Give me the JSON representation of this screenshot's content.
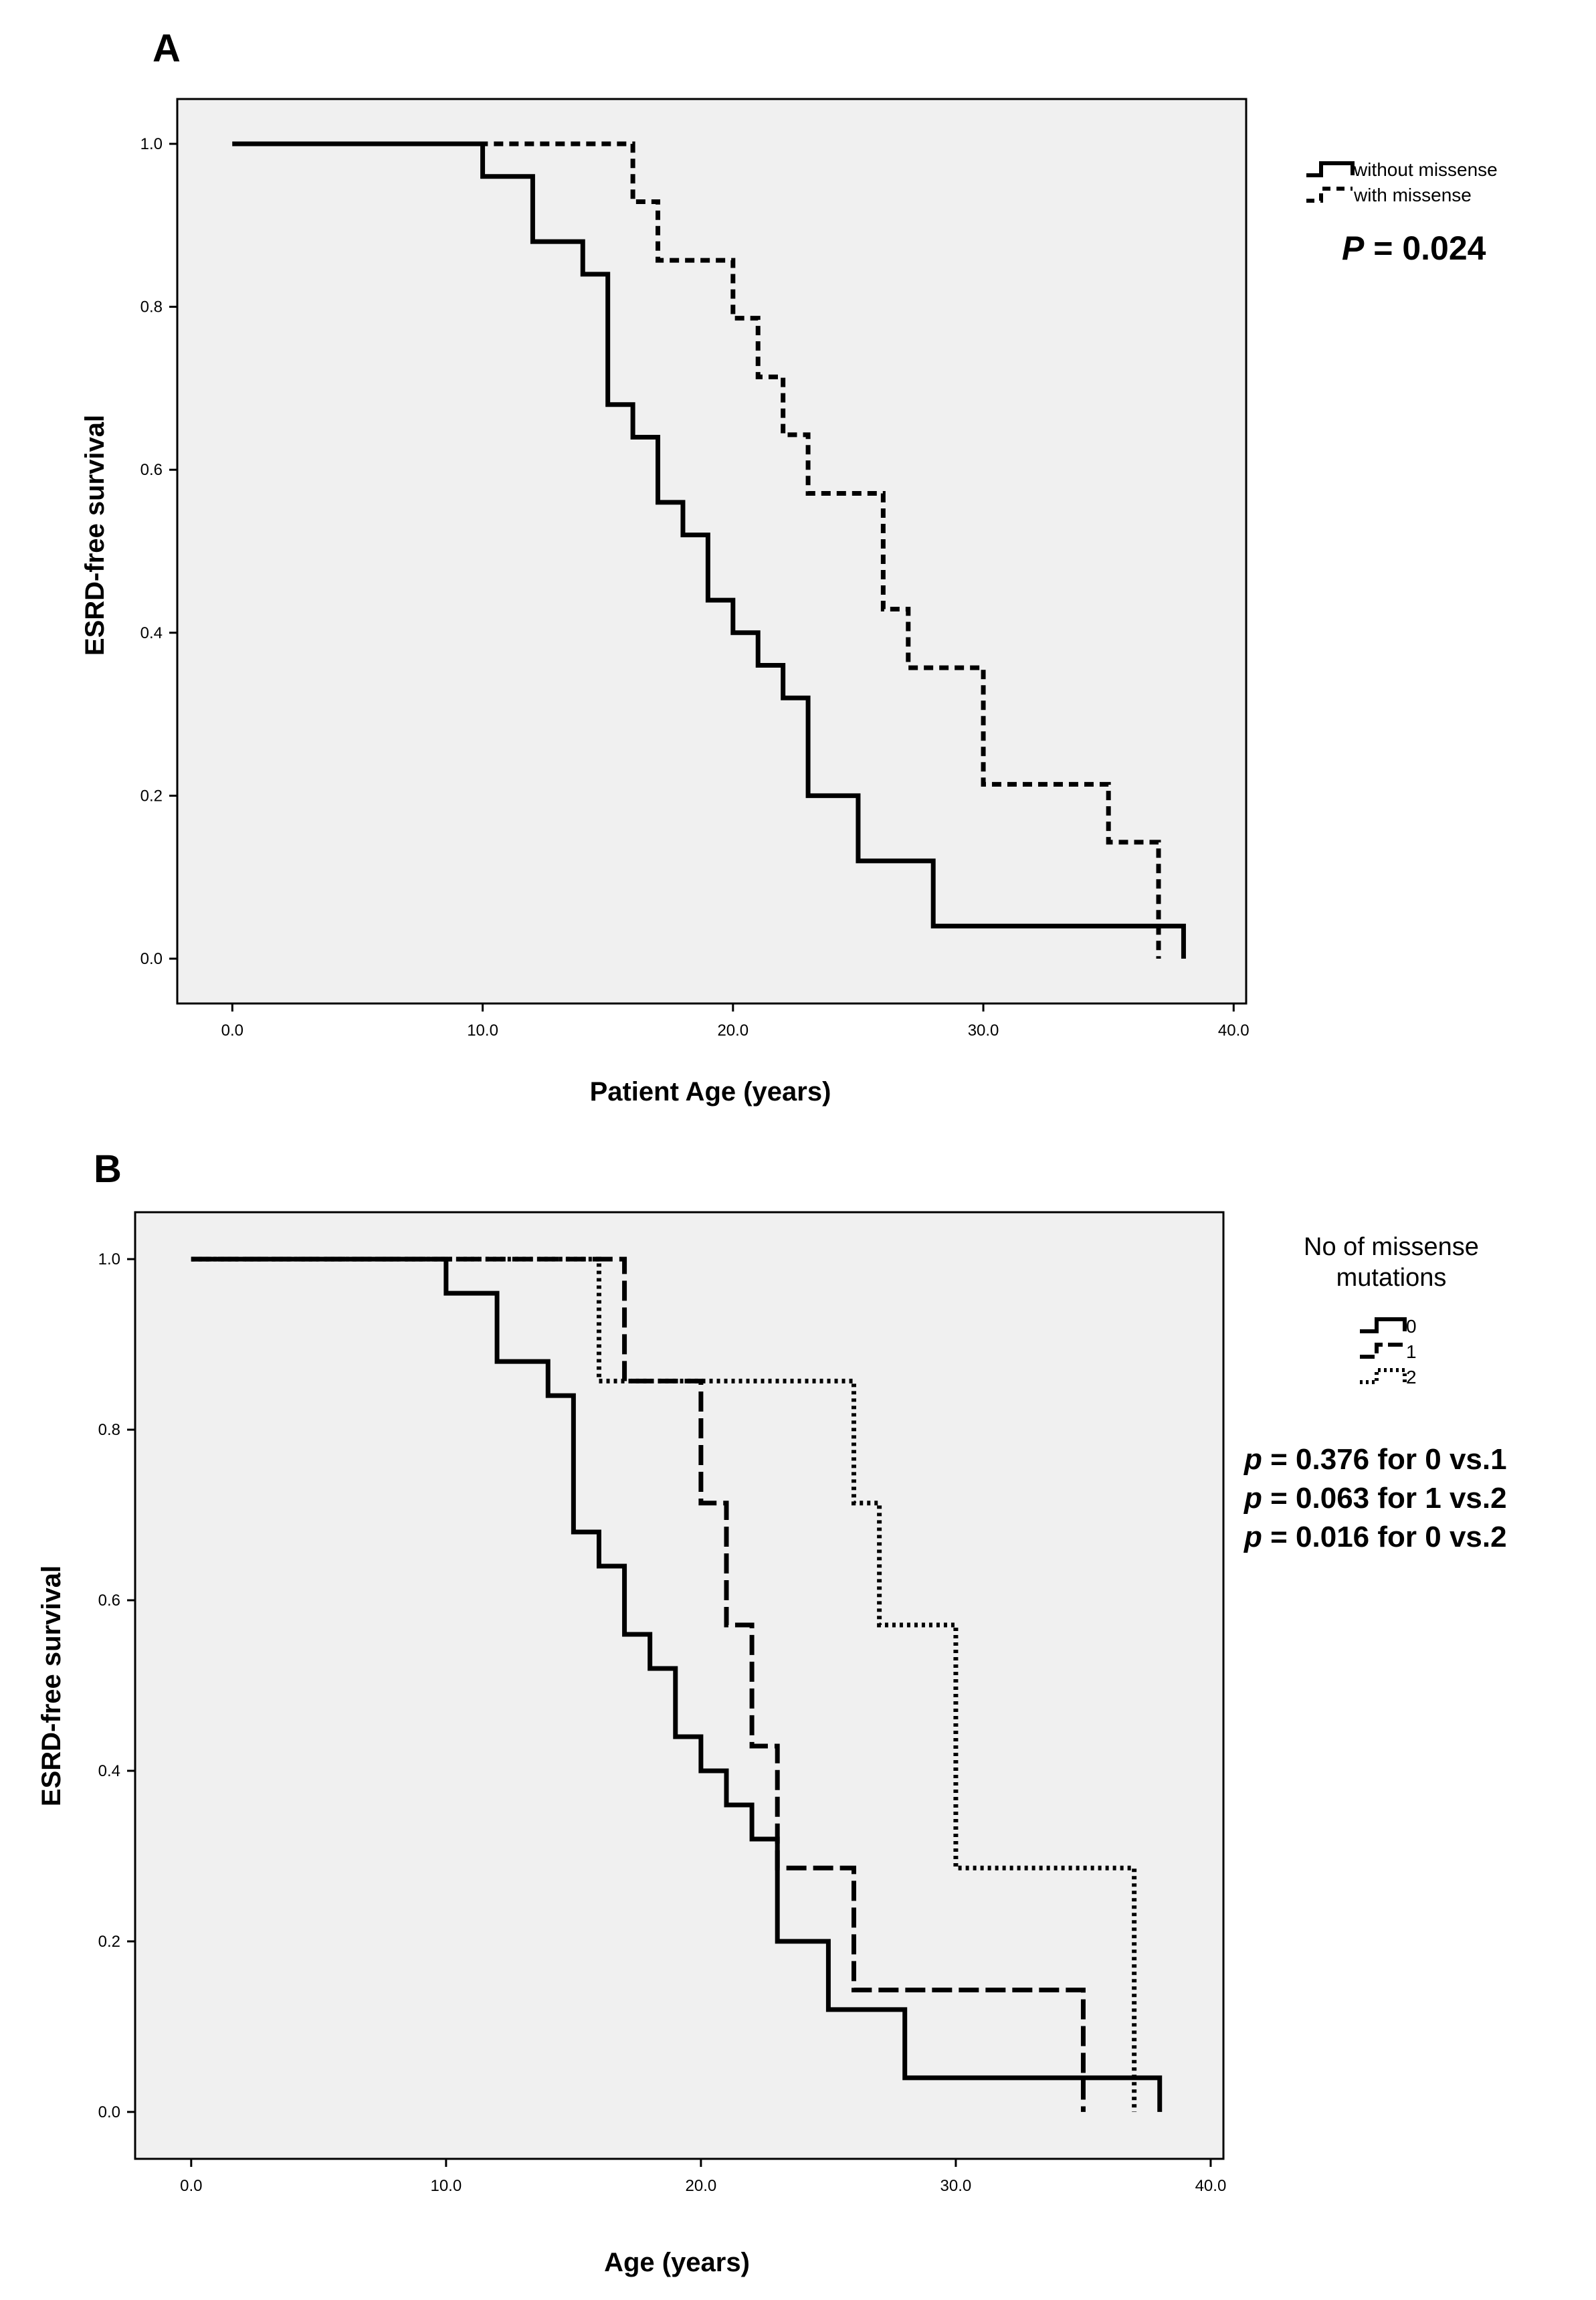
{
  "chart_data": [
    {
      "type": "line",
      "panel_label": "A",
      "xlabel": "Patient Age (years)",
      "ylabel": "ESRD-free survival",
      "xlim": [
        -2.2,
        40.5
      ],
      "ylim": [
        -0.055,
        1.055
      ],
      "xticks": [
        "0.0",
        "10.0",
        "20.0",
        "30.0",
        "40.0"
      ],
      "yticks": [
        "0.0",
        "0.2",
        "0.4",
        "0.6",
        "0.8",
        "1.0"
      ],
      "legend_title": "",
      "legend_placement": "right",
      "annotations": [
        {
          "prefix": "P",
          "text": " = 0.024"
        }
      ],
      "series": [
        {
          "name": "without missense",
          "style": "solid",
          "steps": [
            [
              0,
              1
            ],
            [
              10,
              0.96
            ],
            [
              12,
              0.88
            ],
            [
              14,
              0.84
            ],
            [
              15,
              0.68
            ],
            [
              16,
              0.64
            ],
            [
              17,
              0.56
            ],
            [
              18,
              0.52
            ],
            [
              19,
              0.44
            ],
            [
              20,
              0.4
            ],
            [
              21,
              0.36
            ],
            [
              22,
              0.32
            ],
            [
              23,
              0.2
            ],
            [
              25,
              0.12
            ],
            [
              28,
              0.04
            ],
            [
              38,
              0
            ]
          ],
          "end": 38
        },
        {
          "name": "with missense",
          "style": "dashed",
          "steps": [
            [
              0,
              1
            ],
            [
              16,
              0.929
            ],
            [
              17,
              0.857
            ],
            [
              20,
              0.786
            ],
            [
              21,
              0.714
            ],
            [
              22,
              0.643
            ],
            [
              23,
              0.571
            ],
            [
              26,
              0.429
            ],
            [
              27,
              0.357
            ],
            [
              30,
              0.214
            ],
            [
              35,
              0.143
            ],
            [
              37,
              0
            ]
          ],
          "end": 37
        }
      ]
    },
    {
      "type": "line",
      "panel_label": "B",
      "xlabel": "Age (years)",
      "ylabel": "ESRD-free survival",
      "xlim": [
        -2.2,
        40.5
      ],
      "ylim": [
        -0.055,
        1.055
      ],
      "xticks": [
        "0.0",
        "10.0",
        "20.0",
        "30.0",
        "40.0"
      ],
      "yticks": [
        "0.0",
        "0.2",
        "0.4",
        "0.6",
        "0.8",
        "1.0"
      ],
      "legend_title": "No of missense mutations",
      "legend_title_lines": [
        "No of missense",
        "mutations"
      ],
      "legend_placement": "right",
      "annotations": [
        {
          "prefix": "p",
          "text": " = 0.376 for 0 vs.1"
        },
        {
          "prefix": "p",
          "text": " = 0.063 for 1 vs.2"
        },
        {
          "prefix": "p",
          "text": " = 0.016 for 0 vs.2"
        }
      ],
      "series": [
        {
          "name": "0",
          "style": "solid",
          "steps": [
            [
              0,
              1
            ],
            [
              10,
              0.96
            ],
            [
              12,
              0.88
            ],
            [
              14,
              0.84
            ],
            [
              15,
              0.68
            ],
            [
              16,
              0.64
            ],
            [
              17,
              0.56
            ],
            [
              18,
              0.52
            ],
            [
              19,
              0.44
            ],
            [
              20,
              0.4
            ],
            [
              21,
              0.36
            ],
            [
              22,
              0.32
            ],
            [
              23,
              0.2
            ],
            [
              25,
              0.12
            ],
            [
              28,
              0.04
            ],
            [
              38,
              0
            ]
          ],
          "end": 38
        },
        {
          "name": "1",
          "style": "longdash",
          "steps": [
            [
              0,
              1
            ],
            [
              17,
              0.857
            ],
            [
              20,
              0.714
            ],
            [
              21,
              0.571
            ],
            [
              22,
              0.429
            ],
            [
              23,
              0.286
            ],
            [
              26,
              0.143
            ],
            [
              35,
              0
            ]
          ],
          "end": 35
        },
        {
          "name": "2",
          "style": "dotted",
          "steps": [
            [
              0,
              1
            ],
            [
              16,
              0.857
            ],
            [
              26,
              0.714
            ],
            [
              27,
              0.571
            ],
            [
              30,
              0.286
            ],
            [
              37,
              0
            ]
          ],
          "end": 37
        }
      ]
    }
  ]
}
